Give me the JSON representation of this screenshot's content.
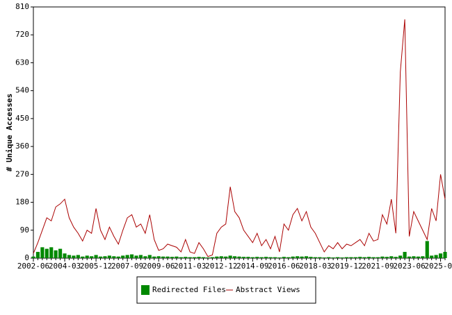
{
  "chart_data": {
    "type": "bar-line",
    "y_label": "# Unique Accesses",
    "categories": [
      "2002-06",
      null,
      null,
      null,
      null,
      null,
      null,
      "2004-03",
      null,
      null,
      null,
      null,
      null,
      null,
      "2005-12",
      null,
      null,
      null,
      null,
      null,
      null,
      "2007-09",
      null,
      null,
      null,
      null,
      null,
      null,
      "2009-06",
      null,
      null,
      null,
      null,
      null,
      null,
      "2011-03",
      null,
      null,
      null,
      null,
      null,
      null,
      "2012-12",
      null,
      null,
      null,
      null,
      null,
      null,
      "2014-09",
      null,
      null,
      null,
      null,
      null,
      null,
      "2016-06",
      null,
      null,
      null,
      null,
      null,
      null,
      "2018-03",
      null,
      null,
      null,
      null,
      null,
      null,
      "2019-12",
      null,
      null,
      null,
      null,
      null,
      null,
      "2021-09",
      null,
      null,
      null,
      null,
      null,
      null,
      "2023-06",
      null,
      null,
      null,
      null,
      null,
      null,
      "2025-03",
      null
    ],
    "series": [
      {
        "name": "Redirected Files",
        "kind": "bar",
        "color": "#008800",
        "values": [
          5,
          20,
          35,
          30,
          35,
          25,
          30,
          15,
          10,
          8,
          10,
          5,
          8,
          6,
          10,
          5,
          6,
          8,
          6,
          5,
          8,
          10,
          12,
          8,
          10,
          6,
          10,
          5,
          6,
          5,
          5,
          4,
          5,
          3,
          4,
          3,
          3,
          4,
          3,
          2,
          3,
          5,
          6,
          5,
          8,
          6,
          5,
          4,
          4,
          3,
          4,
          3,
          4,
          3,
          3,
          2,
          4,
          3,
          5,
          6,
          5,
          6,
          4,
          3,
          3,
          2,
          3,
          2,
          3,
          2,
          3,
          3,
          3,
          4,
          3,
          4,
          3,
          3,
          5,
          4,
          6,
          4,
          8,
          20,
          5,
          6,
          5,
          6,
          55,
          8,
          10,
          15,
          20
        ]
      },
      {
        "name": "Abstract Views",
        "kind": "line",
        "color": "#aa0000",
        "values": [
          15,
          50,
          90,
          130,
          120,
          165,
          175,
          190,
          130,
          100,
          80,
          55,
          90,
          80,
          160,
          90,
          60,
          100,
          70,
          45,
          90,
          130,
          140,
          100,
          110,
          80,
          140,
          60,
          25,
          30,
          45,
          40,
          35,
          20,
          60,
          20,
          15,
          50,
          30,
          5,
          10,
          80,
          100,
          110,
          230,
          150,
          130,
          90,
          70,
          50,
          80,
          40,
          60,
          30,
          70,
          20,
          110,
          90,
          140,
          160,
          120,
          150,
          100,
          80,
          50,
          20,
          40,
          30,
          50,
          30,
          45,
          40,
          50,
          60,
          40,
          80,
          55,
          60,
          140,
          110,
          190,
          80,
          600,
          770,
          70,
          150,
          120,
          90,
          60,
          160,
          120,
          270,
          190
        ]
      }
    ],
    "ylim": [
      0,
      810
    ],
    "yticks": [
      0,
      90,
      180,
      270,
      360,
      450,
      540,
      630,
      720,
      810
    ]
  }
}
